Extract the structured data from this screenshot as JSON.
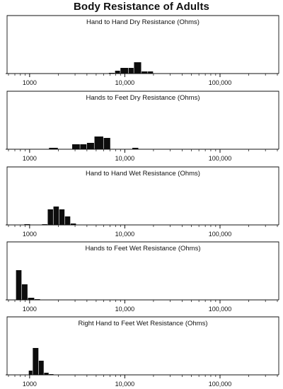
{
  "title": "Body Resistance of Adults",
  "chart_data": [
    {
      "type": "bar",
      "title": "Hand to Hand Dry Resistance (Ohms)",
      "xscale": "log",
      "xlim": [
        600,
        400000
      ],
      "x_ticks": [
        1000,
        10000,
        100000
      ],
      "x_tick_labels": [
        "1000",
        "10,000",
        "100,000"
      ],
      "y_axis": "none",
      "bins": [
        {
          "x0": 6800,
          "x1": 7900,
          "value": 1
        },
        {
          "x0": 7900,
          "x1": 9000,
          "value": 4
        },
        {
          "x0": 9000,
          "x1": 11000,
          "value": 8
        },
        {
          "x0": 11000,
          "x1": 12500,
          "value": 8
        },
        {
          "x0": 12500,
          "x1": 15000,
          "value": 16
        },
        {
          "x0": 15000,
          "x1": 17500,
          "value": 3
        },
        {
          "x0": 17500,
          "x1": 20000,
          "value": 3
        }
      ]
    },
    {
      "type": "bar",
      "title": "Hands to Feet Dry Resistance (Ohms)",
      "xscale": "log",
      "xlim": [
        600,
        400000
      ],
      "x_ticks": [
        1000,
        10000,
        100000
      ],
      "x_tick_labels": [
        "1000",
        "10,000",
        "100,000"
      ],
      "y_axis": "none",
      "bins": [
        {
          "x0": 1600,
          "x1": 2000,
          "value": 2
        },
        {
          "x0": 2800,
          "x1": 3400,
          "value": 7
        },
        {
          "x0": 3400,
          "x1": 4000,
          "value": 7
        },
        {
          "x0": 4000,
          "x1": 4800,
          "value": 9
        },
        {
          "x0": 4800,
          "x1": 6000,
          "value": 18
        },
        {
          "x0": 6000,
          "x1": 7100,
          "value": 16
        },
        {
          "x0": 12000,
          "x1": 14000,
          "value": 2
        }
      ]
    },
    {
      "type": "bar",
      "title": "Hand to Hand Wet Resistance (Ohms)",
      "xscale": "log",
      "xlim": [
        600,
        400000
      ],
      "x_ticks": [
        1000,
        10000,
        100000
      ],
      "x_tick_labels": [
        "1000",
        "10,000",
        "100,000"
      ],
      "y_axis": "none",
      "bins": [
        {
          "x0": 880,
          "x1": 1020,
          "value": 1
        },
        {
          "x0": 1350,
          "x1": 1550,
          "value": 1
        },
        {
          "x0": 1550,
          "x1": 1780,
          "value": 22
        },
        {
          "x0": 1780,
          "x1": 2050,
          "value": 26
        },
        {
          "x0": 2050,
          "x1": 2350,
          "value": 22
        },
        {
          "x0": 2350,
          "x1": 2700,
          "value": 12
        },
        {
          "x0": 2700,
          "x1": 3100,
          "value": 2
        }
      ]
    },
    {
      "type": "bar",
      "title": "Hands to Feet Wet Resistance (Ohms)",
      "xscale": "log",
      "xlim": [
        600,
        400000
      ],
      "x_ticks": [
        1000,
        10000,
        100000
      ],
      "x_tick_labels": [
        "1000",
        "10,000",
        "100,000"
      ],
      "y_axis": "none",
      "bins": [
        {
          "x0": 720,
          "x1": 830,
          "value": 42
        },
        {
          "x0": 830,
          "x1": 960,
          "value": 22
        },
        {
          "x0": 960,
          "x1": 1130,
          "value": 3
        },
        {
          "x0": 1130,
          "x1": 1300,
          "value": 1
        }
      ]
    },
    {
      "type": "bar",
      "title": "Right Hand to Feet Wet Resistance (Ohms)",
      "xscale": "log",
      "xlim": [
        600,
        400000
      ],
      "x_ticks": [
        1000,
        10000,
        100000
      ],
      "x_tick_labels": [
        "1000",
        "10,000",
        "100,000"
      ],
      "y_axis": "none",
      "bins": [
        {
          "x0": 980,
          "x1": 1080,
          "value": 6
        },
        {
          "x0": 1080,
          "x1": 1250,
          "value": 38
        },
        {
          "x0": 1250,
          "x1": 1420,
          "value": 20
        },
        {
          "x0": 1420,
          "x1": 1600,
          "value": 3
        },
        {
          "x0": 1600,
          "x1": 1800,
          "value": 1
        }
      ]
    }
  ]
}
